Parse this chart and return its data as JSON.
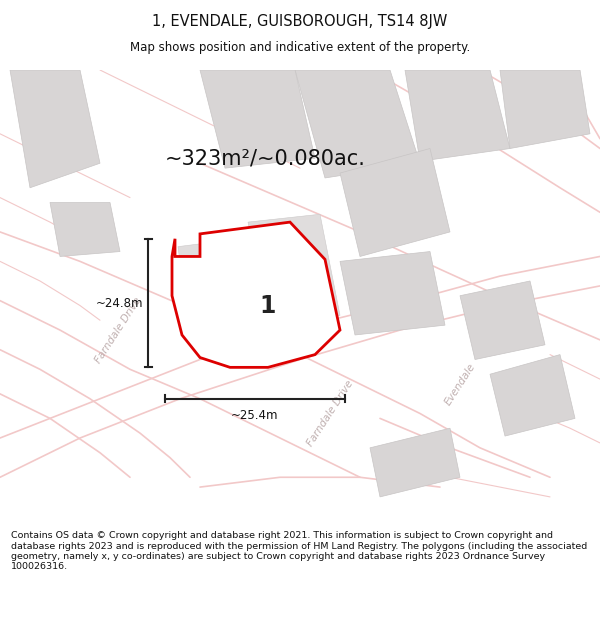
{
  "title": "1, EVENDALE, GUISBOROUGH, TS14 8JW",
  "subtitle": "Map shows position and indicative extent of the property.",
  "area_text": "~323m²/~0.080ac.",
  "width_text": "~25.4m",
  "height_text": "~24.8m",
  "property_number": "1",
  "footer": "Contains OS data © Crown copyright and database right 2021. This information is subject to Crown copyright and database rights 2023 and is reproduced with the permission of HM Land Registry. The polygons (including the associated geometry, namely x, y co-ordinates) are subject to Crown copyright and database rights 2023 Ordnance Survey 100026316.",
  "bg_color": "#ffffff",
  "map_bg": "#f0eeee",
  "road_color": "#ffffff",
  "building_color": "#d8d5d5",
  "plot_line_color": "#dd0000",
  "street_label_color": "#c0b0b0",
  "dim_color": "#222222",
  "title_fontsize": 10.5,
  "subtitle_fontsize": 8.5,
  "area_fontsize": 15,
  "footer_fontsize": 6.8,
  "number_fontsize": 17
}
